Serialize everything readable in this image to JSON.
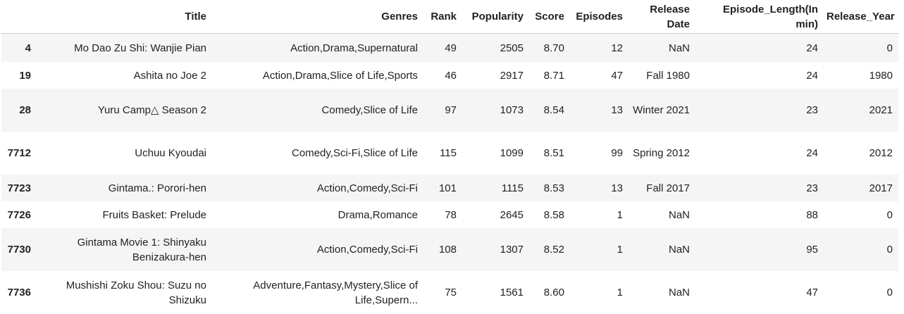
{
  "table": {
    "columns": [
      "",
      "Title",
      "Genres",
      "Rank",
      "Popularity",
      "Score",
      "Episodes",
      "Release Date",
      "Episode_Length(In min)",
      "Release_Year"
    ],
    "rows": [
      {
        "index": "4",
        "title": "Mo Dao Zu Shi: Wanjie Pian",
        "genres": "Action,Drama,Supernatural",
        "rank": "49",
        "popularity": "2505",
        "score": "8.70",
        "episodes": "12",
        "release_date": "NaN",
        "episode_length": "24",
        "release_year": "0"
      },
      {
        "index": "19",
        "title": "Ashita no Joe 2",
        "genres": "Action,Drama,Slice of Life,Sports",
        "rank": "46",
        "popularity": "2917",
        "score": "8.71",
        "episodes": "47",
        "release_date": "Fall 1980",
        "episode_length": "24",
        "release_year": "1980"
      },
      {
        "index": "28",
        "title": "Yuru Camp△ Season 2",
        "genres": "Comedy,Slice of Life",
        "rank": "97",
        "popularity": "1073",
        "score": "8.54",
        "episodes": "13",
        "release_date": "Winter 2021",
        "episode_length": "23",
        "release_year": "2021"
      },
      {
        "index": "7712",
        "title": "Uchuu Kyoudai",
        "genres": "Comedy,Sci-Fi,Slice of Life",
        "rank": "115",
        "popularity": "1099",
        "score": "8.51",
        "episodes": "99",
        "release_date": "Spring 2012",
        "episode_length": "24",
        "release_year": "2012"
      },
      {
        "index": "7723",
        "title": "Gintama.: Porori-hen",
        "genres": "Action,Comedy,Sci-Fi",
        "rank": "101",
        "popularity": "1115",
        "score": "8.53",
        "episodes": "13",
        "release_date": "Fall 2017",
        "episode_length": "23",
        "release_year": "2017"
      },
      {
        "index": "7726",
        "title": "Fruits Basket: Prelude",
        "genres": "Drama,Romance",
        "rank": "78",
        "popularity": "2645",
        "score": "8.58",
        "episodes": "1",
        "release_date": "NaN",
        "episode_length": "88",
        "release_year": "0"
      },
      {
        "index": "7730",
        "title": "Gintama Movie 1: Shinyaku Benizakura-hen",
        "genres": "Action,Comedy,Sci-Fi",
        "rank": "108",
        "popularity": "1307",
        "score": "8.52",
        "episodes": "1",
        "release_date": "NaN",
        "episode_length": "95",
        "release_year": "0"
      },
      {
        "index": "7736",
        "title": "Mushishi Zoku Shou: Suzu no Shizuku",
        "genres": "Adventure,Fantasy,Mystery,Slice of Life,Supern...",
        "rank": "75",
        "popularity": "1561",
        "score": "8.60",
        "episodes": "1",
        "release_date": "NaN",
        "episode_length": "47",
        "release_year": "0"
      }
    ]
  }
}
